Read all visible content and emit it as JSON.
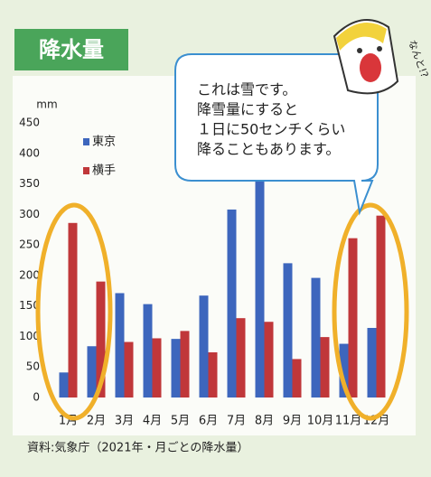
{
  "chart_data": {
    "type": "bar",
    "title": "降水量",
    "y_unit": "mm",
    "categories": [
      "1月",
      "2月",
      "3月",
      "4月",
      "5月",
      "6月",
      "7月",
      "8月",
      "9月",
      "10月",
      "11月",
      "12月"
    ],
    "series": [
      {
        "name": "東京",
        "color": "#3d66bd",
        "values": [
          41,
          84,
          171,
          153,
          96,
          167,
          308,
          380,
          220,
          196,
          88,
          114
        ]
      },
      {
        "name": "横手",
        "color": "#c0373a",
        "values": [
          286,
          190,
          91,
          97,
          109,
          74,
          130,
          124,
          63,
          99,
          261,
          298
        ]
      }
    ],
    "ylim": [
      0,
      450
    ],
    "yticks": [
      0,
      50,
      100,
      150,
      200,
      250,
      300,
      350,
      400,
      450
    ],
    "bubble": [
      "これは雪です。",
      "降雪量にすると",
      "１日に50センチくらい",
      "降ることもあります。"
    ],
    "exclamation": "なんと!?",
    "source": "資料:気象庁（2021年・月ごとの降水量）"
  }
}
